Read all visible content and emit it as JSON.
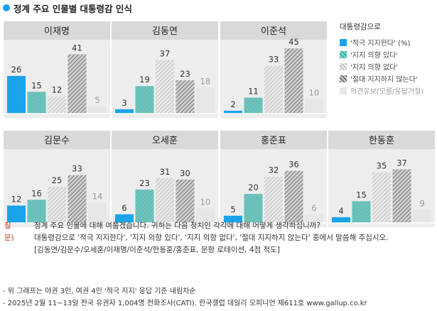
{
  "title": "정계 주요 인물별 대통령감 인식",
  "colors": {
    "strong_support": "#1aa3e8",
    "some_support": "#2bb1a6",
    "no_support_light": "#dcdcdc",
    "no_support_strong": "#9a9a9a",
    "undecided": "#e6e6e6",
    "title_dot": "#1aa3e8",
    "question_label": "#c0392b"
  },
  "legend": {
    "title": "대통령감으로",
    "items": [
      {
        "label": "'적극 지지한다' (%)",
        "swatch": "strong_support"
      },
      {
        "label": "'지지 의향 있다'",
        "swatch": "some_support"
      },
      {
        "label": "'지지 의향 없다'",
        "swatch": "no_support_light"
      },
      {
        "label": "'절대 지지하지 않는다'",
        "swatch": "no_support_strong"
      },
      {
        "label": "의견유보(모름/응답거절)",
        "swatch": "undecided"
      }
    ]
  },
  "chart_data": [
    {
      "type": "bar",
      "title": "이재명",
      "values": [
        26,
        15,
        12,
        41,
        5
      ],
      "ylim": [
        0,
        50
      ]
    },
    {
      "type": "bar",
      "title": "김동연",
      "values": [
        3,
        19,
        37,
        23,
        18
      ],
      "ylim": [
        0,
        50
      ]
    },
    {
      "type": "bar",
      "title": "이준석",
      "values": [
        2,
        11,
        33,
        45,
        10
      ],
      "ylim": [
        0,
        50
      ]
    },
    {
      "type": "bar",
      "title": "김문수",
      "values": [
        12,
        16,
        25,
        33,
        14
      ],
      "ylim": [
        0,
        50
      ]
    },
    {
      "type": "bar",
      "title": "오세훈",
      "values": [
        6,
        23,
        31,
        30,
        10
      ],
      "ylim": [
        0,
        50
      ]
    },
    {
      "type": "bar",
      "title": "홍준표",
      "values": [
        5,
        20,
        32,
        36,
        6
      ],
      "ylim": [
        0,
        50
      ]
    },
    {
      "type": "bar",
      "title": "한동훈",
      "values": [
        4,
        15,
        35,
        37,
        9
      ],
      "ylim": [
        0,
        50
      ]
    }
  ],
  "question": {
    "label": "질문)",
    "lines": [
      "정계 주요 인물에 대해 여쭙겠습니다. 귀하는 다음 정치인 각각에 대해 어떻게 생각하십니까?",
      "대통령감으로 '적극 지지한다', '지지 의향 있다', '지지 의향 없다', '절대 지지하지 않는다' 중에서 말씀해 주십시오.",
      "[김동연/김문수/오세훈/이재명/이준석/한동훈/홍준표, 문항 로테이션, 4점 척도]"
    ]
  },
  "notes": [
    "- 위 그래프는 야권 3인, 여권 4인 '적극 지지' 응답 기준 내림차순",
    "- 2025년 2월 11~13일 전국 유권자 1,004명 전화조사(CATI). 한국갤럽 데일리 오피니언 제611호 www.gallup.co.kr"
  ]
}
